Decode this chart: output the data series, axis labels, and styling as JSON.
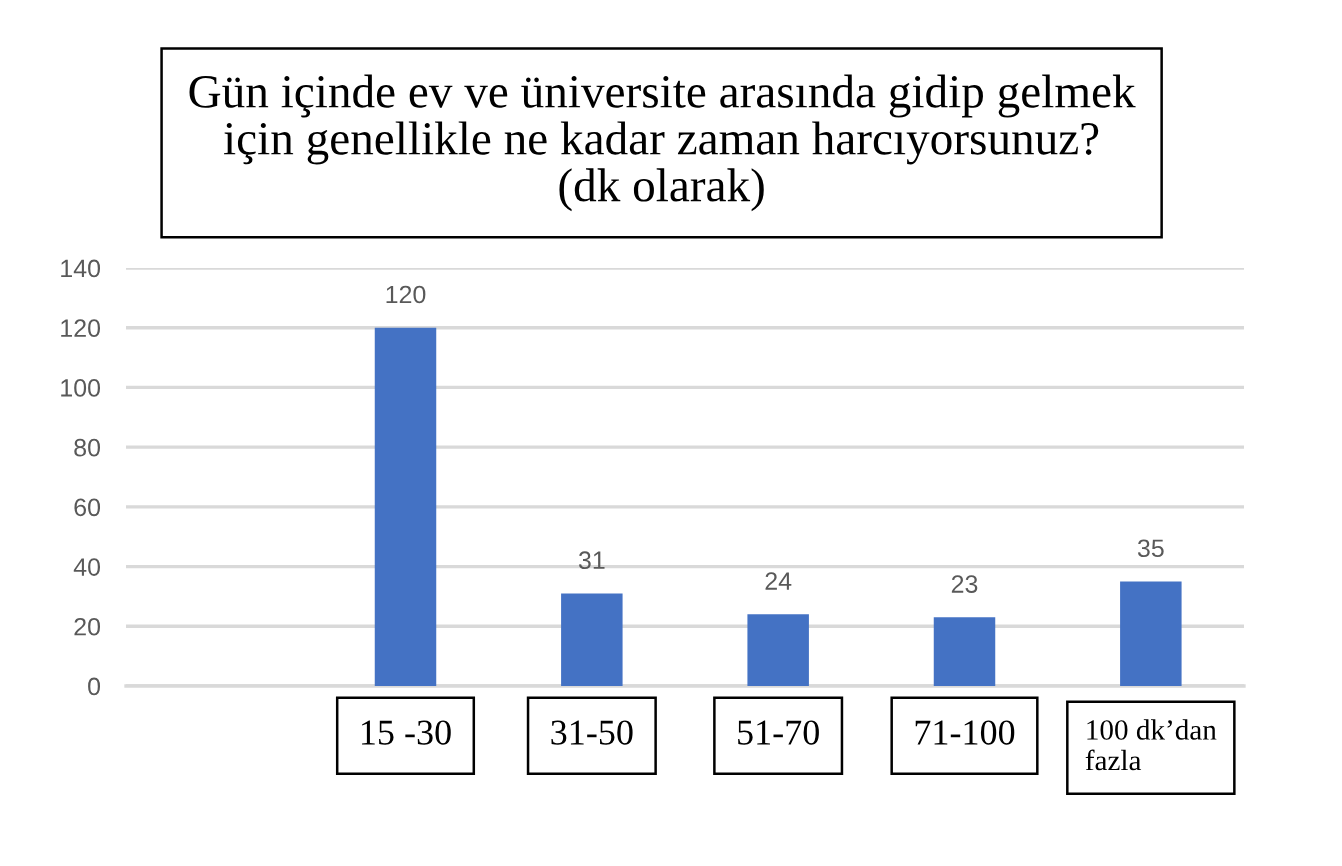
{
  "chart_data": {
    "type": "bar",
    "title": "Gün içinde ev ve üniversite arasında gidip gelmek\niçin genellikle ne kadar zaman harcıyorsunuz?\n(dk olarak)",
    "categories": [
      null,
      "15 -30",
      "31-50",
      "51-70",
      "71-100",
      "100 dk’dan\nfazla"
    ],
    "values": [
      null,
      120,
      31,
      24,
      23,
      35
    ],
    "color": "#4472c4",
    "ylim": [
      0,
      140
    ],
    "yticks": [
      0,
      20,
      40,
      60,
      80,
      100,
      120,
      140
    ],
    "grid": "y",
    "data_labels": true
  }
}
